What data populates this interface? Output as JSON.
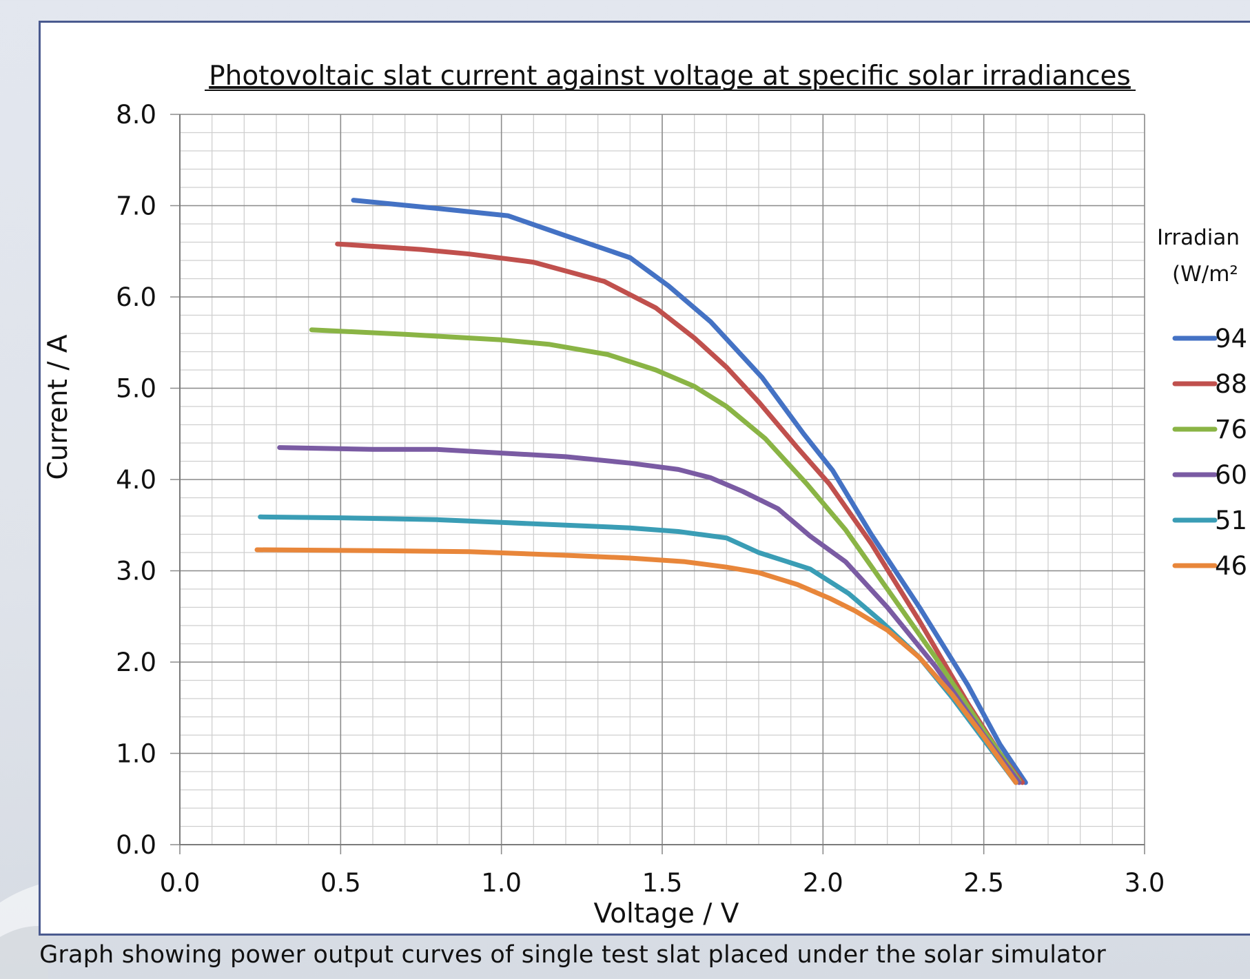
{
  "caption": "Graph showing power output curves of single test slat placed under the solar simulator",
  "chart_data": {
    "type": "line",
    "title": "Photovoltaic slat current against voltage at specific solar irradiances",
    "xlabel": "Voltage / V",
    "ylabel": "Current / A",
    "xlim": [
      0,
      3.0
    ],
    "ylim": [
      0,
      8.0
    ],
    "x_ticks": [
      "0.0",
      "0.5",
      "1.0",
      "1.5",
      "2.0",
      "2.5",
      "3.0"
    ],
    "y_ticks": [
      "0.0",
      "1.0",
      "2.0",
      "3.0",
      "4.0",
      "5.0",
      "6.0",
      "7.0",
      "8.0"
    ],
    "grid": true,
    "legend_title_lines": [
      "Irradian",
      "(W/m²"
    ],
    "legend_position": "right",
    "series": [
      {
        "name": "94",
        "color": "#4472c4",
        "points": [
          [
            0.54,
            7.06
          ],
          [
            0.8,
            6.97
          ],
          [
            1.02,
            6.89
          ],
          [
            1.2,
            6.67
          ],
          [
            1.4,
            6.43
          ],
          [
            1.52,
            6.12
          ],
          [
            1.65,
            5.73
          ],
          [
            1.81,
            5.12
          ],
          [
            1.94,
            4.5
          ],
          [
            2.03,
            4.1
          ],
          [
            2.15,
            3.4
          ],
          [
            2.3,
            2.6
          ],
          [
            2.45,
            1.75
          ],
          [
            2.55,
            1.1
          ],
          [
            2.63,
            0.68
          ]
        ]
      },
      {
        "name": "88",
        "color": "#c0504d",
        "points": [
          [
            0.49,
            6.58
          ],
          [
            0.75,
            6.52
          ],
          [
            0.9,
            6.47
          ],
          [
            1.1,
            6.38
          ],
          [
            1.32,
            6.17
          ],
          [
            1.48,
            5.88
          ],
          [
            1.6,
            5.55
          ],
          [
            1.7,
            5.23
          ],
          [
            1.8,
            4.85
          ],
          [
            1.92,
            4.35
          ],
          [
            2.02,
            3.95
          ],
          [
            2.15,
            3.3
          ],
          [
            2.3,
            2.45
          ],
          [
            2.45,
            1.55
          ],
          [
            2.55,
            1.0
          ],
          [
            2.62,
            0.68
          ]
        ]
      },
      {
        "name": "76",
        "color": "#8ab445",
        "points": [
          [
            0.41,
            5.64
          ],
          [
            0.7,
            5.59
          ],
          [
            1.0,
            5.53
          ],
          [
            1.15,
            5.48
          ],
          [
            1.33,
            5.37
          ],
          [
            1.48,
            5.2
          ],
          [
            1.6,
            5.02
          ],
          [
            1.7,
            4.8
          ],
          [
            1.82,
            4.45
          ],
          [
            1.95,
            3.95
          ],
          [
            2.07,
            3.45
          ],
          [
            2.2,
            2.8
          ],
          [
            2.35,
            2.05
          ],
          [
            2.5,
            1.25
          ],
          [
            2.61,
            0.7
          ]
        ]
      },
      {
        "name": "60",
        "color": "#7a5ba3",
        "points": [
          [
            0.31,
            4.35
          ],
          [
            0.6,
            4.33
          ],
          [
            0.8,
            4.33
          ],
          [
            1.0,
            4.29
          ],
          [
            1.2,
            4.25
          ],
          [
            1.4,
            4.18
          ],
          [
            1.55,
            4.11
          ],
          [
            1.65,
            4.02
          ],
          [
            1.75,
            3.87
          ],
          [
            1.86,
            3.68
          ],
          [
            1.96,
            3.38
          ],
          [
            2.07,
            3.1
          ],
          [
            2.2,
            2.6
          ],
          [
            2.35,
            1.95
          ],
          [
            2.5,
            1.2
          ],
          [
            2.61,
            0.68
          ]
        ]
      },
      {
        "name": "51",
        "color": "#3a9db5",
        "points": [
          [
            0.25,
            3.59
          ],
          [
            0.5,
            3.58
          ],
          [
            0.8,
            3.56
          ],
          [
            1.0,
            3.53
          ],
          [
            1.2,
            3.5
          ],
          [
            1.4,
            3.47
          ],
          [
            1.55,
            3.43
          ],
          [
            1.7,
            3.36
          ],
          [
            1.8,
            3.2
          ],
          [
            1.96,
            3.02
          ],
          [
            2.08,
            2.75
          ],
          [
            2.18,
            2.45
          ],
          [
            2.3,
            2.05
          ],
          [
            2.4,
            1.62
          ],
          [
            2.5,
            1.15
          ],
          [
            2.6,
            0.68
          ]
        ]
      },
      {
        "name": "46",
        "color": "#e8863a",
        "points": [
          [
            0.24,
            3.23
          ],
          [
            0.6,
            3.22
          ],
          [
            0.9,
            3.21
          ],
          [
            1.2,
            3.17
          ],
          [
            1.4,
            3.14
          ],
          [
            1.57,
            3.1
          ],
          [
            1.7,
            3.04
          ],
          [
            1.8,
            2.98
          ],
          [
            1.92,
            2.85
          ],
          [
            2.02,
            2.7
          ],
          [
            2.1,
            2.56
          ],
          [
            2.2,
            2.35
          ],
          [
            2.3,
            2.05
          ],
          [
            2.4,
            1.65
          ],
          [
            2.5,
            1.18
          ],
          [
            2.6,
            0.68
          ]
        ]
      }
    ]
  }
}
